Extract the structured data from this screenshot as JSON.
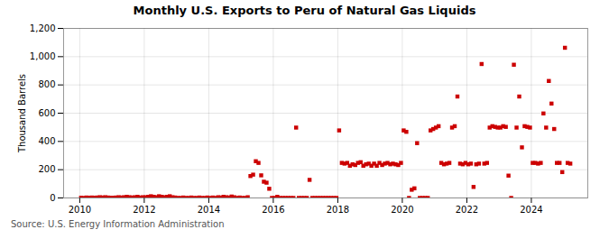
{
  "chart_data": {
    "type": "scatter",
    "title": "Monthly U.S. Exports to Peru of Natural Gas Liquids",
    "ylabel": "Thousand Barrels",
    "source": "Source: U.S. Energy Information Administration",
    "color": "#cc0000",
    "marker": "square",
    "grid": true,
    "xlim": [
      2009.5,
      2025.75
    ],
    "xticks": [
      2010,
      2012,
      2014,
      2016,
      2018,
      2020,
      2022,
      2024
    ],
    "ylim": [
      0,
      1200
    ],
    "yticks": [
      0,
      200,
      400,
      600,
      800,
      {
        "value": 1000,
        "label": "1,000"
      },
      {
        "value": 1200,
        "label": "1,200"
      }
    ],
    "x": [
      2010.0416666666667,
      2010.125,
      2010.2083333333333,
      2010.2916666666667,
      2010.375,
      2010.4583333333333,
      2010.5416666666667,
      2010.625,
      2010.7083333333333,
      2010.7916666666667,
      2010.875,
      2010.9583333333333,
      2011.0416666666667,
      2011.125,
      2011.2083333333333,
      2011.2916666666667,
      2011.375,
      2011.4583333333333,
      2011.5416666666667,
      2011.625,
      2011.7083333333333,
      2011.7916666666667,
      2011.875,
      2011.9583333333333,
      2012.0416666666667,
      2012.125,
      2012.2083333333333,
      2012.2916666666667,
      2012.375,
      2012.4583333333333,
      2012.5416666666667,
      2012.625,
      2012.7083333333333,
      2012.7916666666667,
      2012.875,
      2012.9583333333333,
      2013.0416666666667,
      2013.125,
      2013.2083333333333,
      2013.2916666666667,
      2013.375,
      2013.4583333333333,
      2013.5416666666667,
      2013.625,
      2013.7083333333333,
      2013.7916666666667,
      2013.875,
      2013.9583333333333,
      2014.0416666666667,
      2014.125,
      2014.2083333333333,
      2014.2916666666667,
      2014.375,
      2014.4583333333333,
      2014.5416666666667,
      2014.625,
      2014.7083333333333,
      2014.7916666666667,
      2014.875,
      2014.9583333333333,
      2015.0416666666667,
      2015.125,
      2015.2083333333333,
      2015.2916666666667,
      2015.375,
      2015.4583333333333,
      2015.5416666666667,
      2015.625,
      2015.7083333333333,
      2015.7916666666667,
      2015.875,
      2015.9583333333333,
      2016.0416666666667,
      2016.125,
      2016.2083333333333,
      2016.2916666666667,
      2016.375,
      2016.4583333333333,
      2016.5416666666667,
      2016.625,
      2016.7083333333333,
      2016.7916666666667,
      2016.875,
      2016.9583333333333,
      2017.0416666666667,
      2017.125,
      2017.2083333333333,
      2017.2916666666667,
      2017.375,
      2017.4583333333333,
      2017.5416666666667,
      2017.625,
      2017.7083333333333,
      2017.7916666666667,
      2017.875,
      2017.9583333333333,
      2018.0416666666667,
      2018.125,
      2018.2083333333333,
      2018.2916666666667,
      2018.375,
      2018.4583333333333,
      2018.5416666666667,
      2018.625,
      2018.7083333333333,
      2018.7916666666667,
      2018.875,
      2018.9583333333333,
      2019.0416666666667,
      2019.125,
      2019.2083333333333,
      2019.2916666666667,
      2019.375,
      2019.4583333333333,
      2019.5416666666667,
      2019.625,
      2019.7083333333333,
      2019.7916666666667,
      2019.875,
      2019.9583333333333,
      2020.0416666666667,
      2020.125,
      2020.2083333333333,
      2020.2916666666667,
      2020.375,
      2020.4583333333333,
      2020.5416666666667,
      2020.625,
      2020.7083333333333,
      2020.7916666666667,
      2020.875,
      2020.9583333333333,
      2021.0416666666667,
      2021.125,
      2021.2083333333333,
      2021.2916666666667,
      2021.375,
      2021.4583333333333,
      2021.5416666666667,
      2021.625,
      2021.7083333333333,
      2021.7916666666667,
      2021.875,
      2021.9583333333333,
      2022.0416666666667,
      2022.125,
      2022.2083333333333,
      2022.2916666666667,
      2022.375,
      2022.4583333333333,
      2022.5416666666667,
      2022.625,
      2022.7083333333333,
      2022.7916666666667,
      2022.875,
      2022.9583333333333,
      2023.0416666666667,
      2023.125,
      2023.2083333333333,
      2023.2916666666667,
      2023.375,
      2023.4583333333333,
      2023.5416666666667,
      2023.625,
      2023.7083333333333,
      2023.7916666666667,
      2023.875,
      2023.9583333333333,
      2024.0416666666667,
      2024.125,
      2024.2083333333333,
      2024.2916666666667,
      2024.375,
      2024.4583333333333,
      2024.5416666666667,
      2024.625,
      2024.7083333333333,
      2024.7916666666667,
      2024.875,
      2024.9583333333333,
      2025.0416666666667,
      2025.125,
      2025.2083333333333
    ],
    "values": [
      2,
      0,
      3,
      2,
      3,
      2,
      3,
      5,
      3,
      5,
      3,
      2,
      2,
      3,
      5,
      3,
      5,
      8,
      5,
      3,
      5,
      8,
      3,
      5,
      5,
      8,
      12,
      8,
      5,
      12,
      8,
      5,
      8,
      12,
      5,
      3,
      0,
      0,
      3,
      0,
      0,
      3,
      0,
      0,
      3,
      0,
      0,
      3,
      0,
      3,
      0,
      5,
      3,
      8,
      5,
      3,
      10,
      5,
      0,
      3,
      0,
      0,
      5,
      155,
      165,
      260,
      248,
      160,
      115,
      108,
      65,
      0,
      0,
      8,
      0,
      0,
      0,
      0,
      0,
      0,
      498,
      0,
      0,
      0,
      0,
      128,
      0,
      0,
      0,
      0,
      0,
      0,
      0,
      0,
      0,
      0,
      478,
      248,
      243,
      248,
      228,
      238,
      233,
      248,
      253,
      228,
      238,
      243,
      228,
      243,
      228,
      248,
      233,
      243,
      248,
      238,
      243,
      238,
      233,
      248,
      478,
      468,
      0,
      58,
      68,
      388,
      0,
      0,
      0,
      0,
      478,
      488,
      498,
      508,
      248,
      238,
      243,
      248,
      498,
      508,
      718,
      243,
      238,
      248,
      238,
      243,
      78,
      238,
      243,
      948,
      243,
      248,
      498,
      508,
      503,
      498,
      498,
      508,
      503,
      158,
      0,
      943,
      498,
      718,
      358,
      508,
      503,
      498,
      248,
      248,
      243,
      248,
      598,
      498,
      828,
      668,
      488,
      248,
      248,
      183,
      1063,
      248,
      243
    ]
  }
}
